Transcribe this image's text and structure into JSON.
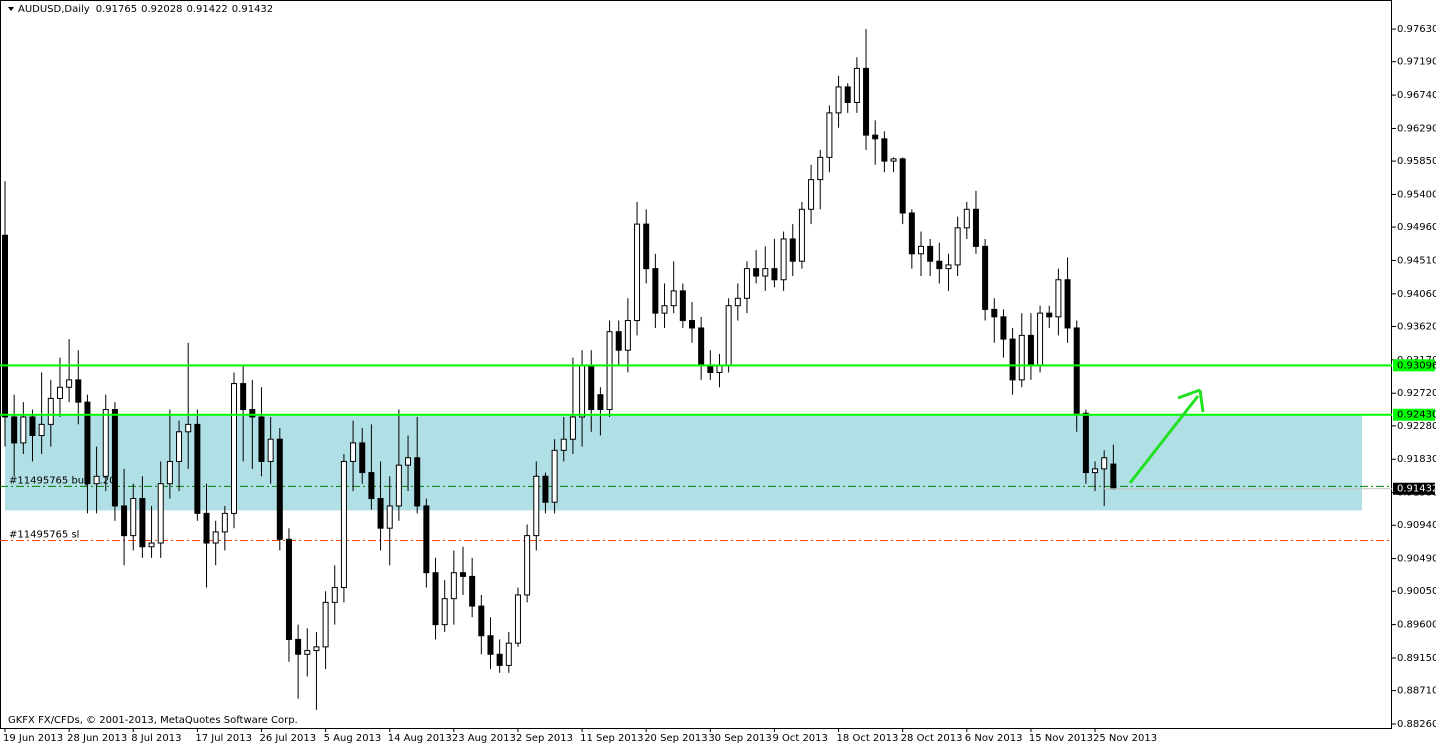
{
  "chart_data": {
    "type": "candlestick",
    "title": "AUDUSD,Daily",
    "copyright": "GKFX FX/CFDs, © 2001-2013, MetaQuotes Software Corp.",
    "bull_color": "#ffffff",
    "bear_color": "#000000",
    "ylim": [
      0.88206,
      0.98022
    ],
    "yticks": [
      {
        "value": 0.9763,
        "label": "0.97630"
      },
      {
        "value": 0.9719,
        "label": "0.97190"
      },
      {
        "value": 0.9674,
        "label": "0.96740"
      },
      {
        "value": 0.9629,
        "label": "0.96290"
      },
      {
        "value": 0.9585,
        "label": "0.95850"
      },
      {
        "value": 0.954,
        "label": "0.95400"
      },
      {
        "value": 0.9496,
        "label": "0.94960"
      },
      {
        "value": 0.9451,
        "label": "0.94510"
      },
      {
        "value": 0.9406,
        "label": "0.94060"
      },
      {
        "value": 0.9362,
        "label": "0.93620"
      },
      {
        "value": 0.9317,
        "label": "0.93170"
      },
      {
        "value": 0.9272,
        "label": "0.92720"
      },
      {
        "value": 0.9228,
        "label": "0.92280"
      },
      {
        "value": 0.9183,
        "label": "0.91830"
      },
      {
        "value": 0.9138,
        "label": "0.91380"
      },
      {
        "value": 0.9094,
        "label": "0.90940"
      },
      {
        "value": 0.9049,
        "label": "0.90490"
      },
      {
        "value": 0.9005,
        "label": "0.90050"
      },
      {
        "value": 0.896,
        "label": "0.89600"
      },
      {
        "value": 0.8915,
        "label": "0.89150"
      },
      {
        "value": 0.8871,
        "label": "0.88710"
      },
      {
        "value": 0.8826,
        "label": "0.88260"
      }
    ],
    "categories": [
      "19 Jun 2013",
      null,
      null,
      null,
      null,
      null,
      null,
      "28 Jun 2013",
      null,
      null,
      null,
      null,
      null,
      null,
      "8 Jul 2013",
      null,
      null,
      null,
      null,
      null,
      null,
      "17 Jul 2013",
      null,
      null,
      null,
      null,
      null,
      null,
      "26 Jul 2013",
      null,
      null,
      null,
      null,
      null,
      null,
      "5 Aug 2013",
      null,
      null,
      null,
      null,
      null,
      null,
      "14 Aug 2013",
      null,
      null,
      null,
      null,
      null,
      null,
      "23 Aug 2013",
      null,
      null,
      null,
      null,
      null,
      null,
      "2 Sep 2013",
      null,
      null,
      null,
      null,
      null,
      null,
      "11 Sep 2013",
      null,
      null,
      null,
      null,
      null,
      null,
      "20 Sep 2013",
      null,
      null,
      null,
      null,
      null,
      null,
      "30 Sep 2013",
      null,
      null,
      null,
      null,
      null,
      null,
      "9 Oct 2013",
      null,
      null,
      null,
      null,
      null,
      null,
      "18 Oct 2013",
      null,
      null,
      null,
      null,
      null,
      null,
      "28 Oct 2013",
      null,
      null,
      null,
      null,
      null,
      null,
      "6 Nov 2013",
      null,
      null,
      null,
      null,
      null,
      null,
      "15 Nov 2013",
      null,
      null,
      null,
      null,
      null,
      null,
      "25 Nov 2013",
      null,
      null
    ],
    "candles": [
      {
        "o": 0.9485,
        "h": 0.9558,
        "l": 0.92,
        "c": 0.924
      },
      {
        "o": 0.924,
        "h": 0.927,
        "l": 0.916,
        "c": 0.9205
      },
      {
        "o": 0.9205,
        "h": 0.926,
        "l": 0.919,
        "c": 0.924
      },
      {
        "o": 0.924,
        "h": 0.925,
        "l": 0.918,
        "c": 0.9215
      },
      {
        "o": 0.9215,
        "h": 0.93,
        "l": 0.919,
        "c": 0.923
      },
      {
        "o": 0.923,
        "h": 0.929,
        "l": 0.92,
        "c": 0.9265
      },
      {
        "o": 0.9265,
        "h": 0.932,
        "l": 0.924,
        "c": 0.928
      },
      {
        "o": 0.928,
        "h": 0.9345,
        "l": 0.926,
        "c": 0.929
      },
      {
        "o": 0.929,
        "h": 0.933,
        "l": 0.923,
        "c": 0.926
      },
      {
        "o": 0.926,
        "h": 0.927,
        "l": 0.911,
        "c": 0.915
      },
      {
        "o": 0.915,
        "h": 0.92,
        "l": 0.911,
        "c": 0.916
      },
      {
        "o": 0.916,
        "h": 0.927,
        "l": 0.914,
        "c": 0.925
      },
      {
        "o": 0.925,
        "h": 0.926,
        "l": 0.91,
        "c": 0.912
      },
      {
        "o": 0.912,
        "h": 0.917,
        "l": 0.904,
        "c": 0.908
      },
      {
        "o": 0.908,
        "h": 0.915,
        "l": 0.906,
        "c": 0.913
      },
      {
        "o": 0.913,
        "h": 0.916,
        "l": 0.905,
        "c": 0.9065
      },
      {
        "o": 0.9065,
        "h": 0.912,
        "l": 0.905,
        "c": 0.907
      },
      {
        "o": 0.907,
        "h": 0.918,
        "l": 0.905,
        "c": 0.915
      },
      {
        "o": 0.915,
        "h": 0.925,
        "l": 0.913,
        "c": 0.918
      },
      {
        "o": 0.918,
        "h": 0.9235,
        "l": 0.914,
        "c": 0.922
      },
      {
        "o": 0.922,
        "h": 0.934,
        "l": 0.917,
        "c": 0.923
      },
      {
        "o": 0.923,
        "h": 0.925,
        "l": 0.91,
        "c": 0.911
      },
      {
        "o": 0.911,
        "h": 0.915,
        "l": 0.901,
        "c": 0.907
      },
      {
        "o": 0.907,
        "h": 0.91,
        "l": 0.904,
        "c": 0.9085
      },
      {
        "o": 0.9085,
        "h": 0.912,
        "l": 0.906,
        "c": 0.911
      },
      {
        "o": 0.911,
        "h": 0.93,
        "l": 0.909,
        "c": 0.9285
      },
      {
        "o": 0.9285,
        "h": 0.931,
        "l": 0.918,
        "c": 0.925
      },
      {
        "o": 0.925,
        "h": 0.929,
        "l": 0.917,
        "c": 0.924
      },
      {
        "o": 0.924,
        "h": 0.928,
        "l": 0.916,
        "c": 0.918
      },
      {
        "o": 0.918,
        "h": 0.924,
        "l": 0.915,
        "c": 0.921
      },
      {
        "o": 0.921,
        "h": 0.9225,
        "l": 0.906,
        "c": 0.9075
      },
      {
        "o": 0.9075,
        "h": 0.909,
        "l": 0.891,
        "c": 0.894
      },
      {
        "o": 0.894,
        "h": 0.896,
        "l": 0.886,
        "c": 0.892
      },
      {
        "o": 0.892,
        "h": 0.8955,
        "l": 0.889,
        "c": 0.8925
      },
      {
        "o": 0.8925,
        "h": 0.895,
        "l": 0.8845,
        "c": 0.893
      },
      {
        "o": 0.893,
        "h": 0.9005,
        "l": 0.89,
        "c": 0.899
      },
      {
        "o": 0.899,
        "h": 0.904,
        "l": 0.896,
        "c": 0.901
      },
      {
        "o": 0.901,
        "h": 0.919,
        "l": 0.899,
        "c": 0.918
      },
      {
        "o": 0.918,
        "h": 0.9235,
        "l": 0.914,
        "c": 0.9205
      },
      {
        "o": 0.9205,
        "h": 0.9225,
        "l": 0.915,
        "c": 0.9165
      },
      {
        "o": 0.9165,
        "h": 0.923,
        "l": 0.9115,
        "c": 0.913
      },
      {
        "o": 0.913,
        "h": 0.918,
        "l": 0.906,
        "c": 0.909
      },
      {
        "o": 0.909,
        "h": 0.916,
        "l": 0.904,
        "c": 0.912
      },
      {
        "o": 0.912,
        "h": 0.925,
        "l": 0.91,
        "c": 0.9175
      },
      {
        "o": 0.9175,
        "h": 0.9215,
        "l": 0.914,
        "c": 0.9185
      },
      {
        "o": 0.9185,
        "h": 0.924,
        "l": 0.911,
        "c": 0.912
      },
      {
        "o": 0.912,
        "h": 0.913,
        "l": 0.901,
        "c": 0.903
      },
      {
        "o": 0.903,
        "h": 0.905,
        "l": 0.894,
        "c": 0.896
      },
      {
        "o": 0.896,
        "h": 0.902,
        "l": 0.895,
        "c": 0.8995
      },
      {
        "o": 0.8995,
        "h": 0.906,
        "l": 0.896,
        "c": 0.903
      },
      {
        "o": 0.903,
        "h": 0.9065,
        "l": 0.9,
        "c": 0.9025
      },
      {
        "o": 0.9025,
        "h": 0.905,
        "l": 0.897,
        "c": 0.8985
      },
      {
        "o": 0.8985,
        "h": 0.9,
        "l": 0.892,
        "c": 0.8945
      },
      {
        "o": 0.8945,
        "h": 0.897,
        "l": 0.89,
        "c": 0.892
      },
      {
        "o": 0.892,
        "h": 0.894,
        "l": 0.8895,
        "c": 0.8905
      },
      {
        "o": 0.8905,
        "h": 0.895,
        "l": 0.8895,
        "c": 0.8935
      },
      {
        "o": 0.8935,
        "h": 0.901,
        "l": 0.893,
        "c": 0.9
      },
      {
        "o": 0.9,
        "h": 0.9095,
        "l": 0.899,
        "c": 0.908
      },
      {
        "o": 0.908,
        "h": 0.918,
        "l": 0.906,
        "c": 0.916
      },
      {
        "o": 0.916,
        "h": 0.9165,
        "l": 0.911,
        "c": 0.9125
      },
      {
        "o": 0.9125,
        "h": 0.921,
        "l": 0.911,
        "c": 0.9195
      },
      {
        "o": 0.9195,
        "h": 0.924,
        "l": 0.918,
        "c": 0.921
      },
      {
        "o": 0.921,
        "h": 0.932,
        "l": 0.919,
        "c": 0.924
      },
      {
        "o": 0.924,
        "h": 0.933,
        "l": 0.92,
        "c": 0.931
      },
      {
        "o": 0.931,
        "h": 0.933,
        "l": 0.922,
        "c": 0.925
      },
      {
        "o": 0.927,
        "h": 0.928,
        "l": 0.9215,
        "c": 0.925
      },
      {
        "o": 0.925,
        "h": 0.937,
        "l": 0.924,
        "c": 0.9355
      },
      {
        "o": 0.9355,
        "h": 0.937,
        "l": 0.931,
        "c": 0.933
      },
      {
        "o": 0.933,
        "h": 0.94,
        "l": 0.93,
        "c": 0.937
      },
      {
        "o": 0.937,
        "h": 0.953,
        "l": 0.935,
        "c": 0.95
      },
      {
        "o": 0.95,
        "h": 0.952,
        "l": 0.942,
        "c": 0.944
      },
      {
        "o": 0.944,
        "h": 0.946,
        "l": 0.936,
        "c": 0.938
      },
      {
        "o": 0.938,
        "h": 0.942,
        "l": 0.936,
        "c": 0.939
      },
      {
        "o": 0.939,
        "h": 0.945,
        "l": 0.938,
        "c": 0.941
      },
      {
        "o": 0.941,
        "h": 0.942,
        "l": 0.936,
        "c": 0.937
      },
      {
        "o": 0.937,
        "h": 0.9395,
        "l": 0.934,
        "c": 0.936
      },
      {
        "o": 0.936,
        "h": 0.9375,
        "l": 0.929,
        "c": 0.931
      },
      {
        "o": 0.931,
        "h": 0.933,
        "l": 0.929,
        "c": 0.93
      },
      {
        "o": 0.93,
        "h": 0.9325,
        "l": 0.928,
        "c": 0.931
      },
      {
        "o": 0.931,
        "h": 0.94,
        "l": 0.93,
        "c": 0.939
      },
      {
        "o": 0.939,
        "h": 0.942,
        "l": 0.937,
        "c": 0.94
      },
      {
        "o": 0.94,
        "h": 0.945,
        "l": 0.938,
        "c": 0.944
      },
      {
        "o": 0.944,
        "h": 0.9465,
        "l": 0.942,
        "c": 0.943
      },
      {
        "o": 0.943,
        "h": 0.947,
        "l": 0.941,
        "c": 0.944
      },
      {
        "o": 0.944,
        "h": 0.948,
        "l": 0.9415,
        "c": 0.9425
      },
      {
        "o": 0.9425,
        "h": 0.949,
        "l": 0.941,
        "c": 0.948
      },
      {
        "o": 0.948,
        "h": 0.95,
        "l": 0.943,
        "c": 0.945
      },
      {
        "o": 0.945,
        "h": 0.953,
        "l": 0.944,
        "c": 0.952
      },
      {
        "o": 0.952,
        "h": 0.958,
        "l": 0.95,
        "c": 0.956
      },
      {
        "o": 0.956,
        "h": 0.96,
        "l": 0.952,
        "c": 0.959
      },
      {
        "o": 0.959,
        "h": 0.966,
        "l": 0.957,
        "c": 0.965
      },
      {
        "o": 0.965,
        "h": 0.97,
        "l": 0.963,
        "c": 0.9685
      },
      {
        "o": 0.9685,
        "h": 0.969,
        "l": 0.965,
        "c": 0.9664
      },
      {
        "o": 0.9664,
        "h": 0.9725,
        "l": 0.965,
        "c": 0.971
      },
      {
        "o": 0.971,
        "h": 0.9763,
        "l": 0.96,
        "c": 0.962
      },
      {
        "o": 0.962,
        "h": 0.964,
        "l": 0.958,
        "c": 0.9615
      },
      {
        "o": 0.9615,
        "h": 0.9625,
        "l": 0.957,
        "c": 0.9585
      },
      {
        "o": 0.9585,
        "h": 0.959,
        "l": 0.957,
        "c": 0.9588
      },
      {
        "o": 0.9588,
        "h": 0.959,
        "l": 0.95,
        "c": 0.9515
      },
      {
        "o": 0.9515,
        "h": 0.952,
        "l": 0.944,
        "c": 0.946
      },
      {
        "o": 0.946,
        "h": 0.949,
        "l": 0.943,
        "c": 0.947
      },
      {
        "o": 0.947,
        "h": 0.948,
        "l": 0.943,
        "c": 0.945
      },
      {
        "o": 0.945,
        "h": 0.9475,
        "l": 0.942,
        "c": 0.944
      },
      {
        "o": 0.944,
        "h": 0.946,
        "l": 0.941,
        "c": 0.9445
      },
      {
        "o": 0.9445,
        "h": 0.951,
        "l": 0.943,
        "c": 0.9495
      },
      {
        "o": 0.9495,
        "h": 0.953,
        "l": 0.948,
        "c": 0.952
      },
      {
        "o": 0.952,
        "h": 0.9545,
        "l": 0.946,
        "c": 0.947
      },
      {
        "o": 0.947,
        "h": 0.948,
        "l": 0.937,
        "c": 0.9385
      },
      {
        "o": 0.9385,
        "h": 0.94,
        "l": 0.934,
        "c": 0.9375
      },
      {
        "o": 0.9375,
        "h": 0.9385,
        "l": 0.932,
        "c": 0.9345
      },
      {
        "o": 0.9345,
        "h": 0.936,
        "l": 0.927,
        "c": 0.929
      },
      {
        "o": 0.929,
        "h": 0.938,
        "l": 0.928,
        "c": 0.935
      },
      {
        "o": 0.935,
        "h": 0.938,
        "l": 0.929,
        "c": 0.931
      },
      {
        "o": 0.931,
        "h": 0.939,
        "l": 0.93,
        "c": 0.938
      },
      {
        "o": 0.938,
        "h": 0.939,
        "l": 0.936,
        "c": 0.9375
      },
      {
        "o": 0.9375,
        "h": 0.944,
        "l": 0.935,
        "c": 0.9425
      },
      {
        "o": 0.9425,
        "h": 0.9455,
        "l": 0.934,
        "c": 0.936
      },
      {
        "o": 0.936,
        "h": 0.937,
        "l": 0.922,
        "c": 0.9245
      },
      {
        "o": 0.9245,
        "h": 0.925,
        "l": 0.915,
        "c": 0.9165
      },
      {
        "o": 0.9165,
        "h": 0.918,
        "l": 0.914,
        "c": 0.917
      },
      {
        "o": 0.917,
        "h": 0.9195,
        "l": 0.912,
        "c": 0.9185
      },
      {
        "o": 0.91765,
        "h": 0.92028,
        "l": 0.91422,
        "c": 0.91432
      }
    ],
    "zone": {
      "top": 0.9243,
      "bottom": 0.9114,
      "color": "#b0e0e6"
    },
    "levels": [
      {
        "value": 0.93096,
        "label": "0.93096",
        "color": "#00ff00"
      },
      {
        "value": 0.9243,
        "label": "0.92430",
        "color": "#00ff00"
      }
    ],
    "orders": [
      {
        "value": 0.91464,
        "label": "#11495765 buy 0.20",
        "color": "#008000"
      },
      {
        "value": 0.90734,
        "label": "#11495765 sl",
        "color": "#ff4500"
      }
    ],
    "price_label": {
      "value": 0.91432,
      "label": "0.91432"
    }
  }
}
